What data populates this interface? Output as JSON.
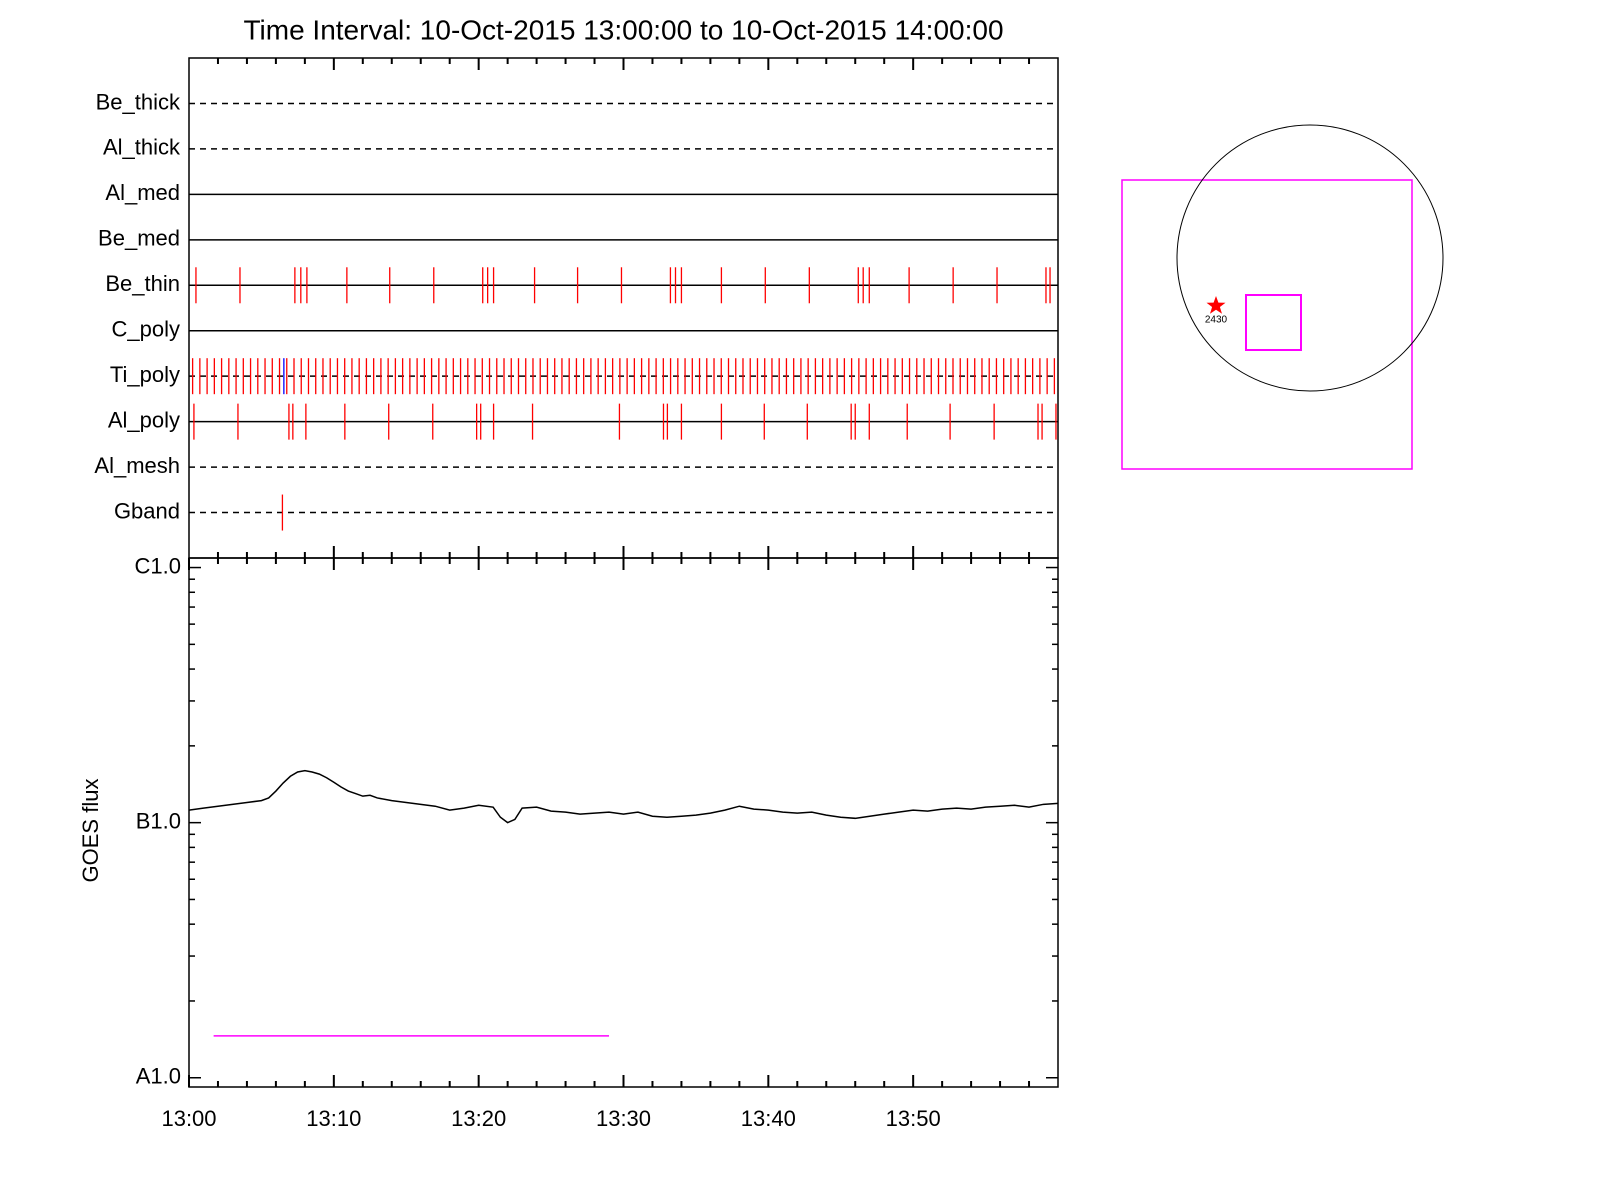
{
  "chart_data": [
    {
      "type": "timeline",
      "title": "Time Interval: 10-Oct-2015 13:00:00 to 10-Oct-2015 14:00:00",
      "xlim": [
        0,
        60
      ],
      "xticks": [
        10,
        20,
        30,
        40,
        50
      ],
      "xminorticks": [
        2,
        4,
        6,
        8,
        12,
        14,
        16,
        18,
        22,
        24,
        26,
        28,
        32,
        34,
        36,
        38,
        42,
        44,
        46,
        48,
        52,
        54,
        56,
        58
      ],
      "rows": [
        {
          "label": "Be_thick",
          "style": "dashed",
          "events": []
        },
        {
          "label": "Al_thick",
          "style": "dashed",
          "events": []
        },
        {
          "label": "Al_med",
          "style": "solid",
          "events": []
        },
        {
          "label": "Be_med",
          "style": "solid",
          "events": []
        },
        {
          "label": "Be_thin",
          "style": "solid",
          "events": [
            {
              "color": "#ff0000",
              "x": [
                0.48,
                3.52,
                7.31,
                7.72,
                8.14,
                10.9,
                13.86,
                16.9,
                20.28,
                20.62,
                21.03,
                23.86,
                26.83,
                29.86,
                33.24,
                33.59,
                34.0,
                36.76,
                39.79,
                42.83,
                46.21,
                46.55,
                46.97,
                49.72,
                52.76,
                55.79,
                59.17,
                59.45
              ]
            }
          ]
        },
        {
          "label": "C_poly",
          "style": "solid",
          "events": []
        },
        {
          "label": "Ti_poly",
          "style": "dashed",
          "events": [
            {
              "color": "#ff0000",
              "x": [
                0.25,
                0.75,
                1.25,
                1.75,
                2.25,
                2.75,
                3.25,
                3.75,
                4.25,
                4.75,
                5.25,
                5.75,
                6.25,
                6.75,
                7.25,
                7.75,
                8.25,
                8.75,
                9.25,
                9.75,
                10.25,
                10.75,
                11.25,
                11.75,
                12.25,
                12.75,
                13.25,
                13.75,
                14.25,
                14.75,
                15.25,
                15.75,
                16.25,
                16.75,
                17.25,
                17.75,
                18.25,
                18.75,
                19.25,
                19.75,
                20.25,
                20.75,
                21.25,
                21.75,
                22.25,
                22.75,
                23.25,
                23.75,
                24.25,
                24.75,
                25.25,
                25.75,
                26.25,
                26.75,
                27.25,
                27.75,
                28.25,
                28.75,
                29.25,
                29.75,
                30.25,
                30.75,
                31.25,
                31.75,
                32.25,
                32.75,
                33.25,
                33.75,
                34.25,
                34.75,
                35.25,
                35.75,
                36.25,
                36.75,
                37.25,
                37.75,
                38.25,
                38.75,
                39.25,
                39.75,
                40.25,
                40.75,
                41.25,
                41.75,
                42.25,
                42.75,
                43.25,
                43.75,
                44.25,
                44.75,
                45.25,
                45.75,
                46.25,
                46.75,
                47.25,
                47.75,
                48.25,
                48.75,
                49.25,
                49.75,
                50.25,
                50.75,
                51.25,
                51.75,
                52.25,
                52.75,
                53.25,
                53.75,
                54.25,
                54.75,
                55.25,
                55.75,
                56.25,
                56.75,
                57.25,
                57.75,
                58.25,
                58.75,
                59.25,
                59.75
              ]
            },
            {
              "color": "#0000ff",
              "x": [
                6.55
              ]
            }
          ]
        },
        {
          "label": "Al_poly",
          "style": "solid",
          "events": [
            {
              "color": "#ff0000",
              "x": [
                0.34,
                3.38,
                6.9,
                7.17,
                8.07,
                10.76,
                13.79,
                16.83,
                19.86,
                20.14,
                21.03,
                23.72,
                29.72,
                32.76,
                33.03,
                34.0,
                36.76,
                39.72,
                42.69,
                45.72,
                46.0,
                46.97,
                49.59,
                52.55,
                55.59,
                58.62,
                58.9,
                59.86
              ]
            }
          ]
        },
        {
          "label": "Al_mesh",
          "style": "dashed",
          "events": []
        },
        {
          "label": "Gband",
          "style": "dashed",
          "events": [
            {
              "color": "#ff0000",
              "x": [
                6.45
              ]
            }
          ]
        }
      ]
    },
    {
      "type": "line",
      "ylabel": "GOES flux",
      "log_y": true,
      "xlim": [
        0,
        60
      ],
      "ylim": [
        9.2e-09,
        1.09e-06
      ],
      "xticks": [
        {
          "value": 0,
          "label": "13:00"
        },
        {
          "value": 10,
          "label": "13:10"
        },
        {
          "value": 20,
          "label": "13:20"
        },
        {
          "value": 30,
          "label": "13:30"
        },
        {
          "value": 40,
          "label": "13:40"
        },
        {
          "value": 50,
          "label": "13:50"
        }
      ],
      "xminorticks": [
        2,
        4,
        6,
        8,
        12,
        14,
        16,
        18,
        22,
        24,
        26,
        28,
        32,
        34,
        36,
        38,
        42,
        44,
        46,
        48,
        52,
        54,
        56,
        58
      ],
      "yticks": [
        {
          "value": 1e-08,
          "label": "A1.0"
        },
        {
          "value": 1e-07,
          "label": "B1.0"
        },
        {
          "value": 1e-06,
          "label": "C1.0"
        }
      ],
      "yminorticks": [
        2e-08,
        3e-08,
        4e-08,
        5e-08,
        6e-08,
        7e-08,
        8e-08,
        9e-08,
        2e-07,
        3e-07,
        4e-07,
        5e-07,
        6e-07,
        7e-07,
        8e-07,
        9e-07
      ],
      "series": [
        {
          "color": "#000000",
          "x": [
            0,
            1,
            2,
            3,
            4,
            5,
            5.5,
            6,
            6.5,
            7,
            7.5,
            8,
            8.5,
            9,
            9.5,
            10,
            10.5,
            11,
            11.5,
            12,
            12.5,
            13,
            14,
            15,
            16,
            17,
            18,
            19,
            20,
            21,
            21.5,
            22,
            22.5,
            23,
            24,
            25,
            26,
            27,
            28,
            29,
            30,
            31,
            32,
            33,
            34,
            35,
            36,
            37,
            38,
            39,
            40,
            41,
            42,
            43,
            44,
            45,
            46,
            47,
            48,
            49,
            50,
            51,
            52,
            53,
            54,
            55,
            56,
            57,
            58,
            59,
            60
          ],
          "values": [
            1.12e-07,
            1.14e-07,
            1.16e-07,
            1.18e-07,
            1.2e-07,
            1.22e-07,
            1.25e-07,
            1.33e-07,
            1.43e-07,
            1.52e-07,
            1.58e-07,
            1.6e-07,
            1.58e-07,
            1.55e-07,
            1.5e-07,
            1.44e-07,
            1.38e-07,
            1.33e-07,
            1.3e-07,
            1.27e-07,
            1.28e-07,
            1.25e-07,
            1.22e-07,
            1.2e-07,
            1.18e-07,
            1.16e-07,
            1.12e-07,
            1.14e-07,
            1.17e-07,
            1.15e-07,
            1.05e-07,
            1e-07,
            1.03e-07,
            1.14e-07,
            1.15e-07,
            1.11e-07,
            1.1e-07,
            1.08e-07,
            1.09e-07,
            1.1e-07,
            1.08e-07,
            1.1e-07,
            1.06e-07,
            1.05e-07,
            1.06e-07,
            1.07e-07,
            1.09e-07,
            1.12e-07,
            1.16e-07,
            1.13e-07,
            1.12e-07,
            1.1e-07,
            1.09e-07,
            1.1e-07,
            1.07e-07,
            1.05e-07,
            1.04e-07,
            1.06e-07,
            1.08e-07,
            1.1e-07,
            1.12e-07,
            1.11e-07,
            1.13e-07,
            1.14e-07,
            1.13e-07,
            1.15e-07,
            1.16e-07,
            1.17e-07,
            1.15e-07,
            1.18e-07,
            1.19e-07
          ]
        },
        {
          "color": "#ff00ff",
          "x": [
            1.7,
            29.0
          ],
          "values": [
            1.46e-08,
            1.46e-08
          ]
        }
      ]
    }
  ],
  "map": {
    "star_label": "2430"
  }
}
